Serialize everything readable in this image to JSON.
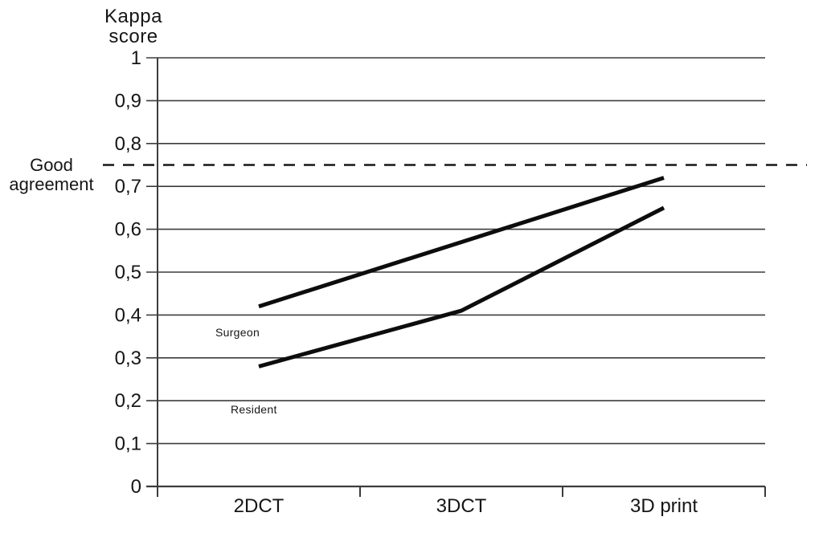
{
  "figure": {
    "background_color": "#ffffff",
    "text_color": "#161616",
    "line_color": "#0d0d0d",
    "grid_color": "#3c3c3c"
  },
  "chart_data": {
    "type": "line",
    "title": "",
    "y_axis_title_lines": [
      "Kappa",
      "score"
    ],
    "y_axis_title": "Kappa score",
    "xlabel": "",
    "ylabel": "Kappa score",
    "categories": [
      "2DCT",
      "3DCT",
      "3D print"
    ],
    "series": [
      {
        "name": "Surgeon",
        "values": [
          0.42,
          0.57,
          0.72
        ],
        "color": "#0d0d0d"
      },
      {
        "name": "Resident",
        "values": [
          0.28,
          0.41,
          0.65
        ],
        "color": "#0d0d0d"
      }
    ],
    "ylim": [
      0,
      1
    ],
    "y_tick_step": 0.1,
    "y_tick_labels": [
      "0",
      "0,1",
      "0,2",
      "0,3",
      "0,4",
      "0,5",
      "0,6",
      "0,7",
      "0,8",
      "0,9",
      "1"
    ],
    "decimal_separator": ",",
    "grid": "horizontal",
    "legend_position": "none",
    "reference_line": {
      "label": "Good agreement",
      "value": 0.75,
      "style": "dashed",
      "color": "#161616"
    },
    "annotations": [
      {
        "text": "Surgeon",
        "series": "Surgeon",
        "placement": "below first point"
      },
      {
        "text": "Resident",
        "series": "Resident",
        "placement": "below first point"
      }
    ]
  }
}
